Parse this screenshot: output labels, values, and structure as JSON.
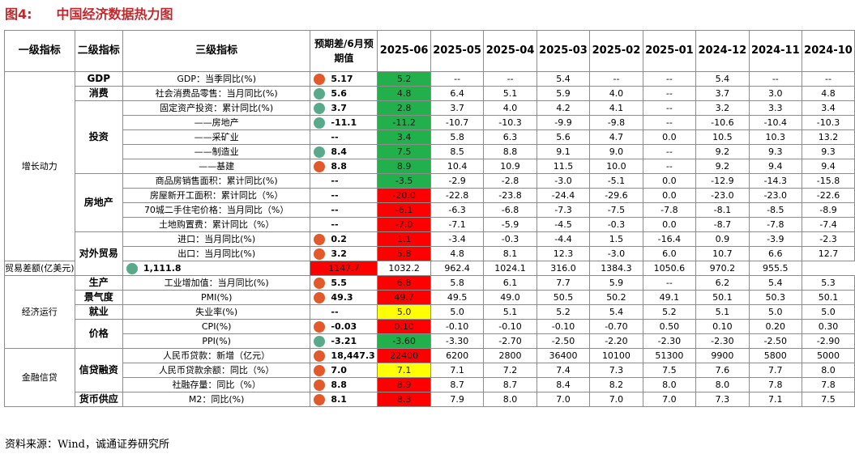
{
  "title": {
    "figure_no": "图4:",
    "text": "中国经济数据热力图"
  },
  "header": {
    "c1": "一级指标",
    "c2": "二级指标",
    "c3": "三级指标",
    "diff": "预期差/6月预期值",
    "months": [
      "2025-06",
      "2025-05",
      "2025-04",
      "2025-03",
      "2025-02",
      "2025-01",
      "2024-12",
      "2024-11",
      "2024-10"
    ]
  },
  "level1": [
    "增长动力",
    "经济运行",
    "金融信贷"
  ],
  "level2": [
    "GDP",
    "消费",
    "投资",
    "房地产",
    "对外贸易",
    "生产",
    "景气度",
    "就业",
    "价格",
    "信贷融资",
    "货币供应"
  ],
  "rows": [
    {
      "ind": "GDP：当季同比(%)",
      "dot": "orange",
      "diff": "5.17",
      "cur": "5.2",
      "color": "green",
      "vals": [
        "--",
        "--",
        "5.4",
        "--",
        "--",
        "5.4",
        "--",
        "--"
      ]
    },
    {
      "ind": "社会消费品零售：当月同比(%)",
      "dot": "teal",
      "diff": "5.6",
      "cur": "4.8",
      "color": "green",
      "vals": [
        "6.4",
        "5.1",
        "5.9",
        "4.0",
        "--",
        "3.7",
        "3.0",
        "4.8"
      ]
    },
    {
      "ind": "固定资产投资：累计同比(%)",
      "dot": "teal",
      "diff": "3.7",
      "cur": "2.8",
      "color": "green",
      "vals": [
        "3.7",
        "4.0",
        "4.2",
        "4.1",
        "--",
        "3.2",
        "3.3",
        "3.4"
      ]
    },
    {
      "ind": "——房地产",
      "dot": "teal",
      "diff": "-11.1",
      "cur": "-11.2",
      "color": "green",
      "vals": [
        "-10.7",
        "-10.3",
        "-9.9",
        "-9.8",
        "--",
        "-10.6",
        "-10.4",
        "-10.3"
      ]
    },
    {
      "ind": "——采矿业",
      "dot": "",
      "diff": "--",
      "cur": "3.4",
      "color": "green",
      "vals": [
        "5.8",
        "6.3",
        "5.6",
        "4.7",
        "0.0",
        "10.5",
        "10.3",
        "13.2"
      ]
    },
    {
      "ind": "——制造业",
      "dot": "teal",
      "diff": "8.4",
      "cur": "7.5",
      "color": "green",
      "vals": [
        "8.5",
        "8.8",
        "9.1",
        "9.0",
        "--",
        "9.2",
        "9.3",
        "9.3"
      ]
    },
    {
      "ind": "——基建",
      "dot": "orange",
      "diff": "8.8",
      "cur": "8.9",
      "color": "green",
      "vals": [
        "10.4",
        "10.9",
        "11.5",
        "10.0",
        "--",
        "9.2",
        "9.4",
        "9.4"
      ]
    },
    {
      "ind": "商品房销售面积：累计同比(%)",
      "dot": "",
      "diff": "--",
      "cur": "-3.5",
      "color": "green",
      "vals": [
        "-2.9",
        "-2.8",
        "-3.0",
        "-5.1",
        "0.0",
        "-12.9",
        "-14.3",
        "-15.8"
      ]
    },
    {
      "ind": "房屋新开工面积：累计同比（%）",
      "dot": "",
      "diff": "--",
      "cur": "-20.0",
      "color": "red",
      "vals": [
        "-22.8",
        "-23.8",
        "-24.4",
        "-29.6",
        "0.0",
        "-23.0",
        "-23.0",
        "-22.6"
      ]
    },
    {
      "ind": "70城二手住宅价格：当月同比（%）",
      "dot": "",
      "diff": "--",
      "cur": "-6.1",
      "color": "red",
      "vals": [
        "-6.3",
        "-6.8",
        "-7.3",
        "-7.5",
        "-7.8",
        "-8.1",
        "-8.5",
        "-8.9"
      ]
    },
    {
      "ind": "土地购置费：累计同比（%）",
      "dot": "",
      "diff": "--",
      "cur": "-7.0",
      "color": "red",
      "vals": [
        "-7.1",
        "-5.9",
        "-4.5",
        "-0.3",
        "0.0",
        "-8.7",
        "-7.8",
        "-7.4"
      ]
    },
    {
      "ind": "进口：当月同比(%)",
      "dot": "orange",
      "diff": "0.2",
      "cur": "1.1",
      "color": "red",
      "vals": [
        "-3.4",
        "-0.3",
        "-4.4",
        "1.5",
        "-16.4",
        "0.9",
        "-3.9",
        "-2.3"
      ]
    },
    {
      "ind": "出口：当月同比(%)",
      "dot": "orange",
      "diff": "3.2",
      "cur": "5.8",
      "color": "red",
      "vals": [
        "4.8",
        "8.1",
        "12.3",
        "-3.0",
        "6.0",
        "10.7",
        "6.6",
        "12.7"
      ]
    },
    {
      "ind": "贸易差额(亿美元)",
      "dot": "teal",
      "diff": "1,111.8",
      "cur": "1147.7",
      "color": "red",
      "vals": [
        "1032.2",
        "962.4",
        "1024.1",
        "316.0",
        "1384.3",
        "1050.6",
        "970.2",
        "955.5"
      ]
    },
    {
      "ind": "工业增加值：当月同比(%)",
      "dot": "orange",
      "diff": "5.5",
      "cur": "6.8",
      "color": "red",
      "vals": [
        "5.8",
        "6.1",
        "7.7",
        "5.9",
        "--",
        "6.2",
        "5.4",
        "5.3"
      ]
    },
    {
      "ind": "PMI(%)",
      "dot": "orange",
      "diff": "49.3",
      "cur": "49.7",
      "color": "red",
      "vals": [
        "49.5",
        "49.0",
        "50.5",
        "50.2",
        "49.1",
        "50.1",
        "50.3",
        "50.1"
      ]
    },
    {
      "ind": "失业率(%)",
      "dot": "",
      "diff": "--",
      "cur": "5.0",
      "color": "yellow",
      "vals": [
        "5.0",
        "5.1",
        "5.2",
        "5.4",
        "5.2",
        "5.1",
        "5.0",
        "5.0"
      ]
    },
    {
      "ind": "CPI(%)",
      "dot": "orange",
      "diff": "-0.03",
      "cur": "0.10",
      "color": "red",
      "vals": [
        "-0.10",
        "-0.10",
        "-0.10",
        "-0.70",
        "0.50",
        "0.10",
        "0.20",
        "0.30"
      ]
    },
    {
      "ind": "PPI(%)",
      "dot": "teal",
      "diff": "-3.21",
      "cur": "-3.60",
      "color": "green",
      "vals": [
        "-3.30",
        "-2.70",
        "-2.50",
        "-2.20",
        "-2.30",
        "-2.30",
        "-2.50",
        "-2.90"
      ]
    },
    {
      "ind": "人民币贷款：新增（亿元）",
      "dot": "orange",
      "diff": "18,447.3",
      "cur": "22400",
      "color": "red",
      "vals": [
        "6200",
        "2800",
        "36400",
        "10100",
        "51300",
        "9900",
        "5800",
        "5000"
      ]
    },
    {
      "ind": "人民币贷款余额：同比（%）",
      "dot": "orange",
      "diff": "7.0",
      "cur": "7.1",
      "color": "yellow",
      "vals": [
        "7.1",
        "7.2",
        "7.4",
        "7.3",
        "7.5",
        "7.6",
        "7.7",
        "8.0"
      ]
    },
    {
      "ind": "社融存量：同比（%）",
      "dot": "orange",
      "diff": "8.8",
      "cur": "8.9",
      "color": "red",
      "vals": [
        "8.7",
        "8.7",
        "8.4",
        "8.2",
        "8.0",
        "8.0",
        "7.8",
        "7.8"
      ]
    },
    {
      "ind": "M2：同比(%)",
      "dot": "orange",
      "diff": "8.1",
      "cur": "8.3",
      "color": "red",
      "vals": [
        "7.9",
        "8.0",
        "7.0",
        "7.0",
        "7.0",
        "7.3",
        "7.1",
        "7.5"
      ]
    }
  ],
  "colors": {
    "green": "#21b04b",
    "red": "#fe0000",
    "yellow": "#ffff00",
    "dot_orange": "#e2592c",
    "dot_teal": "#59aa8a"
  },
  "source": "资料来源：Wind，诚通证券研究所"
}
